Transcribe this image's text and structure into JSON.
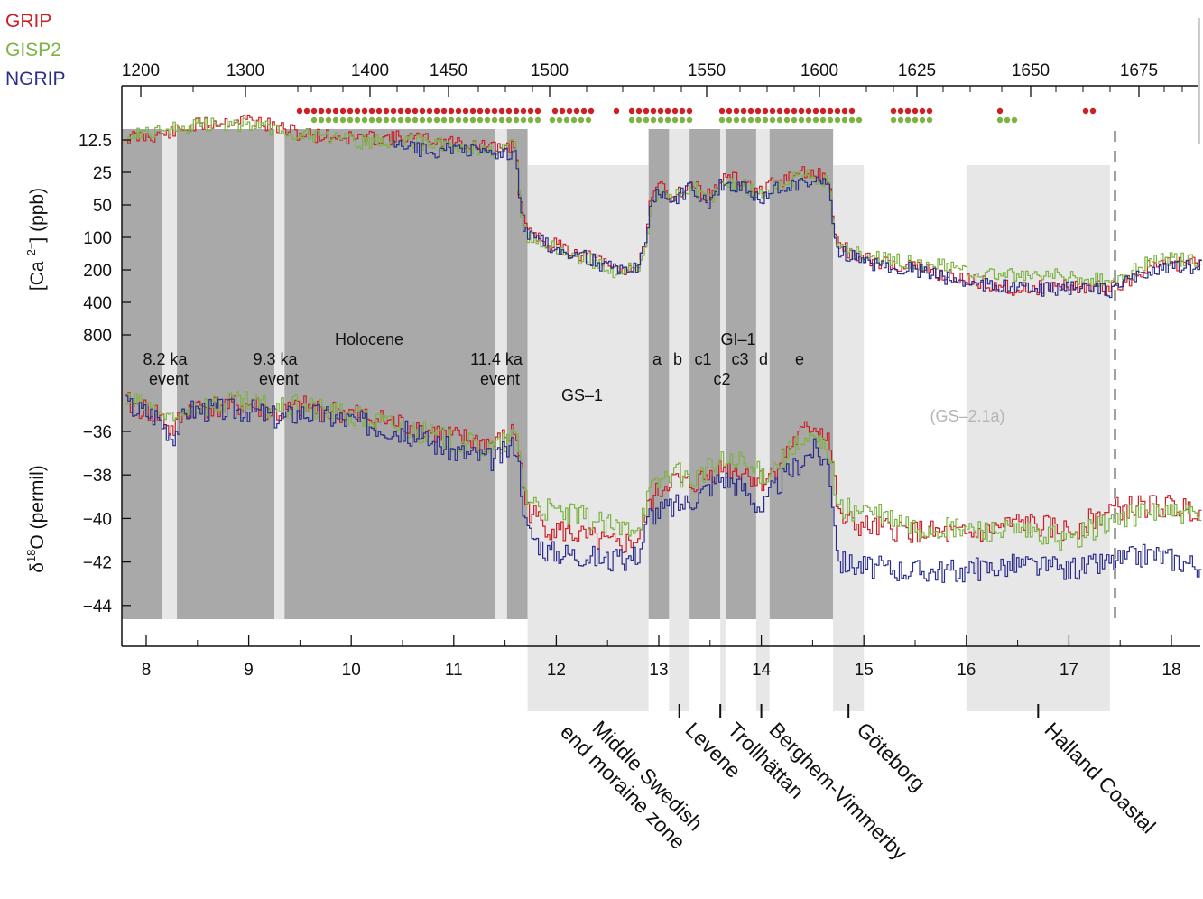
{
  "legend": [
    {
      "name": "GRIP",
      "color": "#cc2027"
    },
    {
      "name": "GISP2",
      "color": "#7cb342"
    },
    {
      "name": "NGRIP",
      "color": "#2b2d8c"
    }
  ],
  "colors": {
    "holocene_shade": "#a9a9a9",
    "stadial_shade": "#e7e7e7",
    "dashed_line": "#a0a0a0"
  },
  "axes": {
    "y_upper_label": "[Ca 2+] (ppb)",
    "y_upper_label_main": "[Ca",
    "y_upper_label_sup": "2+",
    "y_upper_label_tail": "] (ppb)",
    "y_lower_label": "δ18O (permil)",
    "y_lower_label_delta": "δ",
    "y_lower_label_sup": "18",
    "y_lower_label_tail": "O (permil)"
  },
  "annotations": {
    "holocene": "Holocene",
    "event_82": [
      "8.2 ka",
      "event"
    ],
    "event_93": [
      "9.3 ka",
      "event"
    ],
    "event_114": [
      "11.4 ka",
      "event"
    ],
    "gs1": "GS–1",
    "gi1": "GI–1",
    "sub": [
      "a",
      "b",
      "c1",
      "c2",
      "c3",
      "d",
      "e"
    ],
    "gs21a": "(GS–2.1a)"
  },
  "stages": [
    {
      "name": "Middle Swedish",
      "name2": "end moraine zone"
    },
    {
      "name": "Levene"
    },
    {
      "name": "Trollhättan"
    },
    {
      "name": "Berghem-Vimmerby"
    },
    {
      "name": "Göteborg"
    },
    {
      "name": "Halland Coastal"
    }
  ],
  "chart_data": {
    "type": "line",
    "x_bottom_ticks": [
      "8",
      "9",
      "10",
      "11",
      "12",
      "13",
      "14",
      "15",
      "16",
      "17",
      "18"
    ],
    "x_top_ticks": [
      "1200",
      "1300",
      "1400",
      "1450",
      "1500",
      "1550",
      "1600",
      "1625",
      "1650",
      "1675"
    ],
    "y_upper_ticks": [
      "12.5",
      "25",
      "50",
      "100",
      "200",
      "400",
      "800"
    ],
    "y_lower_ticks": [
      "-36",
      "-38",
      "-40",
      "-42",
      "-44"
    ],
    "x_range": [
      7.75,
      18.3
    ],
    "ca_log_scale": true,
    "series_ca": [
      {
        "name": "GRIP",
        "x": [
          7.8,
          8.2,
          8.5,
          9.0,
          9.5,
          10.0,
          10.5,
          11.0,
          11.4,
          11.6,
          11.7,
          11.9,
          12.3,
          12.6,
          12.8,
          12.9,
          13.0,
          13.1,
          13.3,
          13.5,
          13.6,
          13.8,
          14.0,
          14.1,
          14.4,
          14.65,
          14.75,
          15.0,
          15.5,
          16.0,
          16.5,
          17.0,
          17.4,
          17.8,
          18.3
        ],
        "y": [
          12,
          11,
          9,
          8,
          11,
          12,
          12,
          13,
          15,
          14,
          90,
          110,
          150,
          200,
          180,
          55,
          30,
          42,
          32,
          42,
          28,
          30,
          40,
          32,
          25,
          28,
          120,
          160,
          190,
          250,
          300,
          280,
          300,
          180,
          170
        ]
      },
      {
        "name": "GISP2",
        "x": [
          7.8,
          8.2,
          8.5,
          9.0,
          9.5,
          10.0,
          10.5,
          11.0,
          11.4,
          11.6,
          11.7,
          11.9,
          12.3,
          12.6,
          12.8,
          12.9,
          13.0,
          13.1,
          13.3,
          13.5,
          13.6,
          13.8,
          14.0,
          14.1,
          14.4,
          14.65,
          14.75,
          15.0,
          15.5,
          16.0,
          16.5,
          17.0,
          17.4,
          17.8,
          18.3
        ],
        "y": [
          11,
          10,
          9,
          9,
          11,
          13,
          13,
          14,
          16,
          14,
          100,
          120,
          160,
          210,
          190,
          60,
          32,
          45,
          34,
          45,
          30,
          32,
          42,
          34,
          27,
          30,
          125,
          150,
          170,
          200,
          220,
          230,
          260,
          160,
          160
        ]
      },
      {
        "name": "NGRIP",
        "x": [
          10.4,
          10.8,
          11.0,
          11.4,
          11.6,
          11.7,
          11.9,
          12.3,
          12.6,
          12.8,
          12.9,
          13.0,
          13.1,
          13.3,
          13.5,
          13.6,
          13.8,
          14.0,
          14.1,
          14.4,
          14.65,
          14.75,
          15.0,
          15.5,
          16.0,
          16.5,
          17.0,
          17.4,
          17.8,
          18.3
        ],
        "y": [
          14,
          16,
          15,
          17,
          16,
          95,
          115,
          155,
          205,
          185,
          60,
          35,
          48,
          35,
          48,
          32,
          33,
          46,
          36,
          30,
          32,
          130,
          170,
          200,
          260,
          300,
          300,
          310,
          190,
          190
        ]
      }
    ],
    "series_d18o": [
      {
        "name": "GRIP",
        "x": [
          7.8,
          8.1,
          8.25,
          8.4,
          9.0,
          9.3,
          9.5,
          10.0,
          10.5,
          11.0,
          11.4,
          11.6,
          11.7,
          11.9,
          12.3,
          12.6,
          12.8,
          12.9,
          13.1,
          13.3,
          13.6,
          13.8,
          14.0,
          14.1,
          14.3,
          14.5,
          14.65,
          14.75,
          15.0,
          15.5,
          16.0,
          16.5,
          17.0,
          17.4,
          17.8,
          18.3
        ],
        "y": [
          -34.7,
          -35.2,
          -36.0,
          -34.9,
          -34.8,
          -35.2,
          -34.9,
          -35.2,
          -35.7,
          -36.3,
          -36.6,
          -36.0,
          -39.5,
          -40.4,
          -40.9,
          -41.3,
          -40.9,
          -39.3,
          -38.2,
          -38.5,
          -37.7,
          -37.8,
          -38.3,
          -37.9,
          -36.5,
          -35.7,
          -36.2,
          -40.0,
          -40.4,
          -40.6,
          -40.8,
          -40.2,
          -40.6,
          -39.6,
          -39.4,
          -39.6
        ]
      },
      {
        "name": "GISP2",
        "x": [
          7.8,
          8.1,
          8.25,
          8.4,
          9.0,
          9.3,
          9.5,
          10.0,
          10.5,
          11.0,
          11.4,
          11.6,
          11.7,
          11.9,
          12.3,
          12.6,
          12.8,
          12.9,
          13.1,
          13.3,
          13.6,
          13.8,
          14.0,
          14.1,
          14.3,
          14.5,
          14.65,
          14.75,
          15.0,
          15.5,
          16.0,
          16.5,
          17.0,
          17.4,
          17.8,
          18.3
        ],
        "y": [
          -34.6,
          -35.0,
          -35.7,
          -34.8,
          -34.7,
          -35.0,
          -34.8,
          -35.3,
          -35.8,
          -36.5,
          -36.8,
          -36.2,
          -39.0,
          -39.6,
          -40.0,
          -40.5,
          -40.2,
          -38.8,
          -37.8,
          -38.2,
          -37.4,
          -37.5,
          -38.0,
          -37.6,
          -36.8,
          -36.4,
          -36.8,
          -39.6,
          -39.6,
          -40.5,
          -40.5,
          -40.6,
          -41.0,
          -40.1,
          -39.6,
          -40.0
        ]
      },
      {
        "name": "NGRIP",
        "x": [
          7.8,
          8.1,
          8.25,
          8.4,
          9.0,
          9.3,
          9.5,
          10.0,
          10.5,
          11.0,
          11.4,
          11.6,
          11.7,
          11.9,
          12.3,
          12.6,
          12.8,
          12.9,
          13.1,
          13.3,
          13.6,
          13.8,
          14.0,
          14.1,
          14.3,
          14.5,
          14.65,
          14.75,
          15.0,
          15.5,
          16.0,
          16.5,
          17.0,
          17.4,
          17.8,
          18.3
        ],
        "y": [
          -34.8,
          -35.3,
          -36.2,
          -35.0,
          -35.0,
          -35.4,
          -35.1,
          -35.5,
          -36.0,
          -36.9,
          -37.3,
          -36.5,
          -40.5,
          -41.5,
          -41.7,
          -42.0,
          -41.6,
          -39.8,
          -39.5,
          -39.2,
          -38.1,
          -38.5,
          -39.6,
          -38.7,
          -37.7,
          -36.8,
          -37.5,
          -42.0,
          -42.2,
          -42.4,
          -42.4,
          -42.1,
          -42.4,
          -42.0,
          -41.6,
          -42.2
        ]
      }
    ],
    "shading_holocene_gi": [
      [
        7.75,
        11.72
      ],
      [
        12.9,
        14.7
      ]
    ],
    "shading_light_bands": [
      [
        8.15,
        8.3
      ],
      [
        9.25,
        9.35
      ],
      [
        11.4,
        11.52
      ],
      [
        13.1,
        13.3
      ],
      [
        13.6,
        13.65
      ],
      [
        13.95,
        14.08
      ]
    ],
    "shading_stadial": [
      [
        11.72,
        12.9
      ],
      [
        13.1,
        13.3
      ],
      [
        13.6,
        13.65
      ],
      [
        13.95,
        14.08
      ],
      [
        14.7,
        15.0
      ],
      [
        16.0,
        17.4
      ]
    ],
    "dashed_x": 17.45,
    "stage_ticks": [
      13.2,
      13.6,
      14.0,
      14.85,
      16.7
    ]
  }
}
